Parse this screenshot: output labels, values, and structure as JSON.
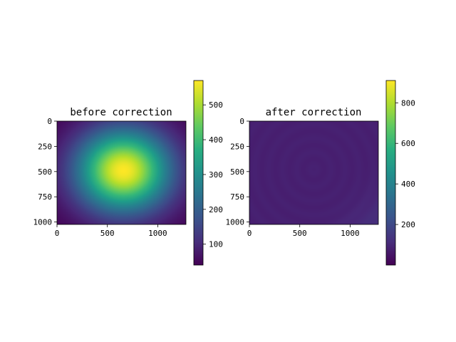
{
  "chart_data": [
    {
      "type": "heatmap",
      "title": "before correction",
      "image_extent": {
        "x": [
          0,
          1280
        ],
        "y": [
          0,
          1024
        ]
      },
      "x_ticks": [
        0,
        500,
        1000
      ],
      "y_ticks": [
        0,
        250,
        500,
        750,
        1000
      ],
      "y_inverted": true,
      "colormap": "viridis",
      "field": {
        "kind": "radial_gaussian",
        "center": [
          660,
          490
        ],
        "peak": 570,
        "background": 40,
        "sigma_x": 320,
        "sigma_y": 280
      },
      "colorbar": {
        "range": [
          40,
          570
        ],
        "ticks": [
          100,
          200,
          300,
          400,
          500
        ]
      }
    },
    {
      "type": "heatmap",
      "title": "after correction",
      "image_extent": {
        "x": [
          0,
          1280
        ],
        "y": [
          0,
          1024
        ]
      },
      "x_ticks": [
        0,
        500,
        1000
      ],
      "y_ticks": [
        0,
        250,
        500,
        750,
        1000
      ],
      "y_inverted": true,
      "colormap": "viridis",
      "field": {
        "kind": "flat_with_rings",
        "level": 80,
        "corner_level": 130,
        "corner": "bottom-right",
        "ring_center": [
          640,
          480
        ]
      },
      "colorbar": {
        "range": [
          0,
          910
        ],
        "ticks": [
          200,
          400,
          600,
          800
        ]
      }
    }
  ]
}
